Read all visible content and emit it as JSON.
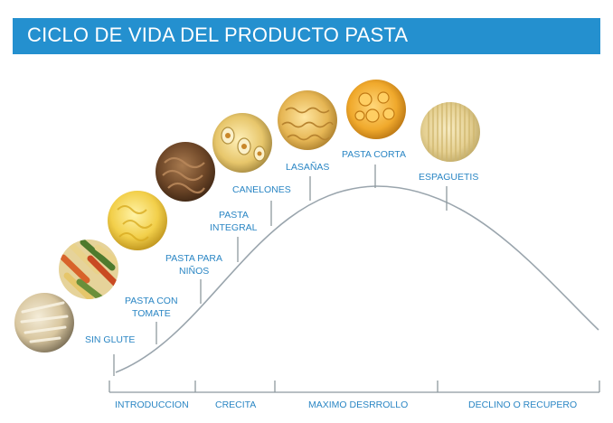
{
  "title": "CICLO DE VIDA DEL PRODUCTO PASTA",
  "products": [
    {
      "label": "SIN GLUTE",
      "icon": "gluten-free-pasta-photo"
    },
    {
      "label": [
        "PASTA CON",
        "TOMATE"
      ],
      "icon": "tomato-pasta-photo"
    },
    {
      "label": [
        "PASTA PARA",
        "NIÑOS"
      ],
      "icon": "kids-pasta-photo"
    },
    {
      "label": [
        "PASTA",
        "INTEGRAL"
      ],
      "icon": "whole-wheat-pasta-photo"
    },
    {
      "label": "CANELONES",
      "icon": "cannelloni-photo"
    },
    {
      "label": "LASAÑAS",
      "icon": "lasagna-photo"
    },
    {
      "label": "PASTA CORTA",
      "icon": "short-pasta-photo"
    },
    {
      "label": "ESPAGUETIS",
      "icon": "spaghetti-photo"
    }
  ],
  "phases": [
    "INTRODUCCION",
    "CRECITA",
    "MAXIMO DESRROLLO",
    "DECLINO O RECUPERO"
  ],
  "colors": {
    "title_bar": "#2490cf",
    "accent": "#2a86c4",
    "line": "#9aa5ad"
  }
}
